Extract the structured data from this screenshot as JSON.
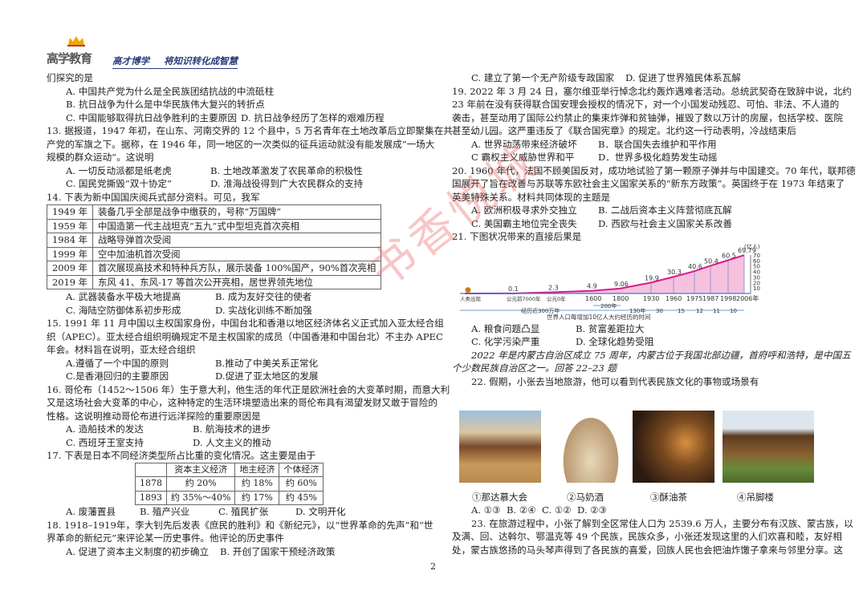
{
  "header": {
    "logo_text": "高学教育",
    "slogan": "高才博学 将知识转化成智慧"
  },
  "watermark": "书香悦城",
  "page_number": "2",
  "left": {
    "q12_cont": {
      "stem": "们探究的是",
      "A": "A. 中国共产党为什么是全民族团结抗战的中流砥柱",
      "B": "B. 抗日战争为什么是中华民族伟大复兴的转折点",
      "C": "C. 中国能够取得抗日战争胜利的主要原因",
      "D": "D. 抗日战争经历了怎样的艰难历程"
    },
    "q13": {
      "lines": [
        "13. 据报道，1947 年初，在山东、河南交界的 12 个县中，5 万名青年在土地改革后立即聚集在共",
        "产党的军旗之下。据称，在 1946 年，同一地区的一次类似的征兵运动就没有能发展成“一场大",
        "规模的群众运动”。这说明"
      ],
      "A": "A. 一切反动派都是纸老虎",
      "B": "B. 土地改革激发了农民革命的积极性",
      "C": "C. 国民党撕毁“双十协定”",
      "D": "D. 淮海战役得到广大农民群众的支持"
    },
    "q14": {
      "stem": "14. 下表为新中国国庆阅兵式部分资料。可见，我军",
      "rows": [
        {
          "year": "1949 年",
          "text": "装备几乎全部是战争中缴获的，号称“万国牌”"
        },
        {
          "year": "1959 年",
          "text": "中国造第一代主战坦克“五九”式中型坦克首次亮相"
        },
        {
          "year": "1984 年",
          "text": "战略导弹首次受阅"
        },
        {
          "year": "1999 年",
          "text": "空中加油机首次受阅"
        },
        {
          "year": "2009 年",
          "text": "首次展现高技术和特种兵方队，展示装备 100%国产，90%首次亮相"
        },
        {
          "year": "2019 年",
          "text": "东风 41、东风-17 等首次公开亮相，居世界领先地位"
        }
      ],
      "A": "A. 武器装备水平极大地提高",
      "B": "B. 成为友好交往的使者",
      "C": "C. 海陆空防御体系初步形成",
      "D": "D. 实战化训练不断加强"
    },
    "q15": {
      "lines": [
        "15. 1991 年 11 月中国以主权国家身份，中国台北和香港以地区经济体名义正式加入亚太经合组",
        "织（APEC）。亚太经合组织明确规定不是主权国家的成员（中国香港和中国台北）不主办 APEC",
        "年会。材料旨在说明，亚太经合组织"
      ],
      "A": "A.遵循了一个中国的原则",
      "B": "B.推动了中美关系正常化",
      "C": "C.是香港回归的主要原因",
      "D": "D.促进了亚太地区的发展"
    },
    "q16": {
      "lines": [
        "16. 哥伦布（1452～1506 年）生于意大利，他生活的年代正是欧洲社会的大变革时期，而意大利",
        "又是这场社会大变革的中心，这种特定的生活环境塑造出来的哥伦布具有渴望发财又敢于冒险的",
        "性格。这说明推动哥伦布进行远洋探险的重要原因是"
      ],
      "A": "A. 造船技术的发达",
      "B": "B. 航海技术的进步",
      "C": "C. 西班牙王室支持",
      "D": "D. 人文主义的推动"
    },
    "q17": {
      "stem": "17. 下表是日本不同经济类型所占比重的变化情况。这主要是由于",
      "headers": [
        "",
        "资本主义经济",
        "地主经济",
        "个体经济"
      ],
      "rows": [
        [
          "1878",
          "约 20%",
          "约 18%",
          "约 60%"
        ],
        [
          "1893",
          "约 35%～40%",
          "约 17%",
          "约 45%"
        ]
      ],
      "A": "A. 废藩置县",
      "B": "B. 殖产兴业",
      "C": "C. 殖民扩张",
      "D": "D. 文明开化"
    },
    "q18": {
      "lines": [
        "18. 1918–1919年，李大钊先后发表《庶民的胜利》和《新纪元》，以“世界革命的先声”和“世",
        "界革命的新纪元”来评论某一历史事件。他评论的历史事件"
      ],
      "A": "A. 促进了资本主义制度的初步确立",
      "B": "B. 开创了国家干预经济政策"
    }
  },
  "right": {
    "q18_cont": {
      "C": "C. 建立了第一个无产阶级专政国家",
      "D": "D. 促进了世界殖民体系瓦解"
    },
    "q19": {
      "lines": [
        "19. 2022 年 3 月 24 日，塞尔维亚举行悼念北约轰炸遇难者活动。总统武契奇在致辞中说，北约",
        "23 年前在没有获得联合国安理会授权的情况下，对一个小国发动残忍、可怕、非法、不人道的",
        "袭击，甚至动用了国际公约禁止的集束炸弹和贫铀弹，摧毁了数以万计的房屋，包括学校、医院",
        "甚至幼儿园。这严重违反了《联合国宪章》的规定。北约这一行动表明，冷战结束后"
      ],
      "A": "A. 世界动荡带来经济破坏",
      "B": "B．联合国失去维护和平作用",
      "C": "C 霸权主义威胁世界和平",
      "D": "D．世界多极化趋势发生动摇"
    },
    "q20": {
      "lines": [
        "20. 1960 年代，法国不顾美国反对，成功地试验了第一颗原子弹并与中国建交。70 年代，联邦德",
        "国展开了旨在改善与苏联等东欧社会主义国家关系的“新东方政策”。英国终于在 1973 年结束了",
        "英美特殊关系。材料共同体现的主题是"
      ],
      "A": "A. 欧洲积极寻求外交独立",
      "B": "B. 二战后资本主义阵营彻底瓦解",
      "C": "C. 美国霸主地位完全丧失",
      "D": "D. 西欧与社会主义国家关系改善"
    },
    "q21": {
      "stem": "21. 下图状况带来的直接后果是",
      "A": "A. 粮食问题凸显",
      "B": "B. 贫富差距拉大",
      "C": "C. 化学污染严重",
      "D": "D. 全球化趋势受阻"
    },
    "intro": [
      "2022 年是内蒙古自治区成立 75 周年，内蒙古位于我国北部边疆，首府呼和浩特，是中国五",
      "个少数民族自治区之一。回答 22–23 题"
    ],
    "q22": {
      "stem": "22. 假期，小张去当地旅游，他可以看到代表民族文化的事物或场景有",
      "captions": [
        "①那达慕大会",
        "②马奶酒",
        "③酥油茶",
        "④吊脚楼"
      ],
      "A": "A. ①③",
      "B": "B. ②④",
      "C": "C. ①②",
      "D": "D. ②③"
    },
    "q23": {
      "lines": [
        "23. 在旅游过程中，小张了解到全区常住人口为 2539.6 万人，主要分布有汉族、蒙古族，以",
        "及满、回、达斡尔、鄂温克等 49 个民族，民族众多，小张还发现这里的人们欢喜和睦，友好相",
        "处，蒙古族悠扬的马头琴声得到了各民族的喜爱，回族人民也会把油炸馓子拿来与邻里分享。这"
      ]
    }
  },
  "chart_data": {
    "type": "area",
    "title": "世界人口每增加10亿人大约经历的时间",
    "ylabel": "(亿人)",
    "ylim": [
      0,
      70
    ],
    "yticks": [
      "10",
      "20",
      "30",
      "40",
      "50",
      "60",
      "70"
    ],
    "categories": [
      "人类出现",
      "公元前7000年",
      "公元0年",
      "1600",
      "1800",
      "1930",
      "1960",
      "1975",
      "1987",
      "1998",
      "2006年"
    ],
    "values": [
      0,
      0.1,
      2.3,
      4.9,
      9.06,
      19.9,
      30.3,
      40.6,
      50.4,
      60.5,
      69.79
    ],
    "value_labels": [
      "",
      "0.1",
      "2.3",
      "4.9",
      "9.06",
      "19.9",
      "30.3",
      "40.6",
      "50.4",
      "60.5",
      "69.79"
    ],
    "spans": [
      "经历近300万年",
      "200年",
      "130年",
      "30",
      "15",
      "12",
      "11",
      "10"
    ],
    "colors": {
      "line": "#d81b8a",
      "fill": "#f2a6cf",
      "axis": "#3a7bd5"
    }
  }
}
